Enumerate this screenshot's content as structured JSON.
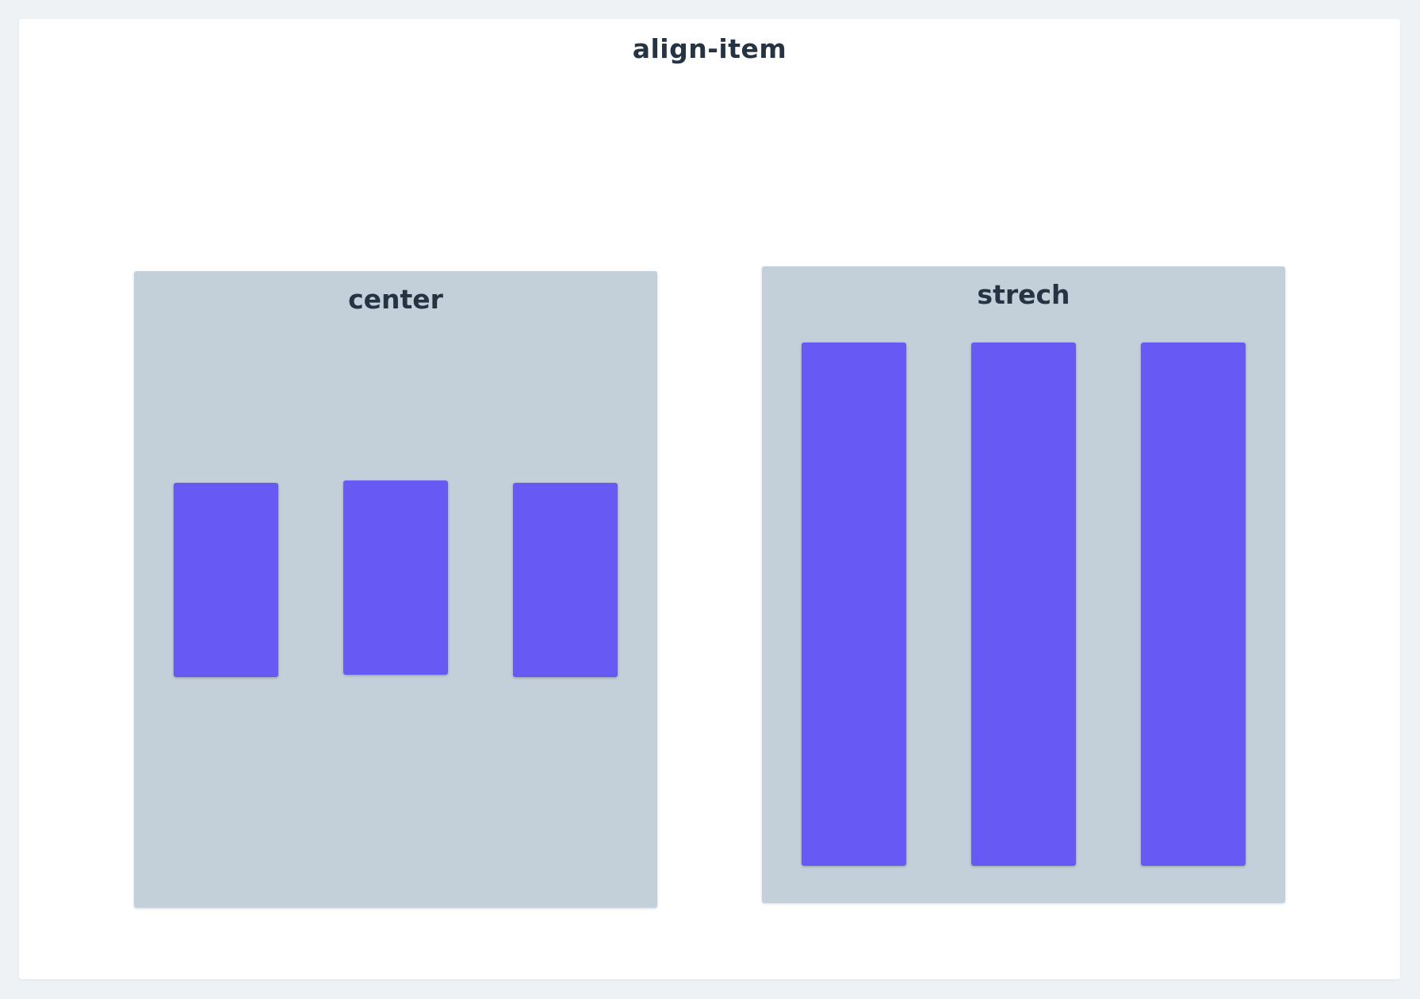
{
  "page": {
    "title": "align-item"
  },
  "demos": [
    {
      "label": "center",
      "item_count": 3
    },
    {
      "label": "strech",
      "item_count": 3
    }
  ],
  "colors": {
    "page_background": "#eef2f5",
    "card_background": "#ffffff",
    "demo_background": "#c3cfd9",
    "item_fill": "#6659f4",
    "text": "#253342"
  }
}
